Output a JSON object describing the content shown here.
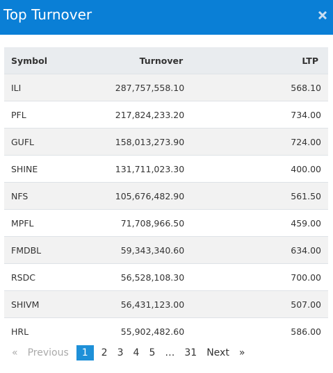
{
  "header": {
    "title": "Top Turnover"
  },
  "table": {
    "columns": [
      "Symbol",
      "Turnover",
      "LTP"
    ],
    "rows": [
      [
        "ILI",
        "287,757,558.10",
        "568.10"
      ],
      [
        "PFL",
        "217,824,233.20",
        "734.00"
      ],
      [
        "GUFL",
        "158,013,273.90",
        "724.00"
      ],
      [
        "SHINE",
        "131,711,023.30",
        "400.00"
      ],
      [
        "NFS",
        "105,676,482.90",
        "561.50"
      ],
      [
        "MPFL",
        "71,708,966.50",
        "459.00"
      ],
      [
        "FMDBL",
        "59,343,340.60",
        "634.00"
      ],
      [
        "RSDC",
        "56,528,108.30",
        "700.00"
      ],
      [
        "SHIVM",
        "56,431,123.00",
        "507.00"
      ],
      [
        "HRL",
        "55,902,482.60",
        "586.00"
      ]
    ]
  },
  "pagination": {
    "first": "«",
    "previous": "Previous",
    "pages": [
      "1",
      "2",
      "3",
      "4",
      "5",
      "…",
      "31"
    ],
    "active": 0,
    "next": "Next",
    "last": "»"
  }
}
